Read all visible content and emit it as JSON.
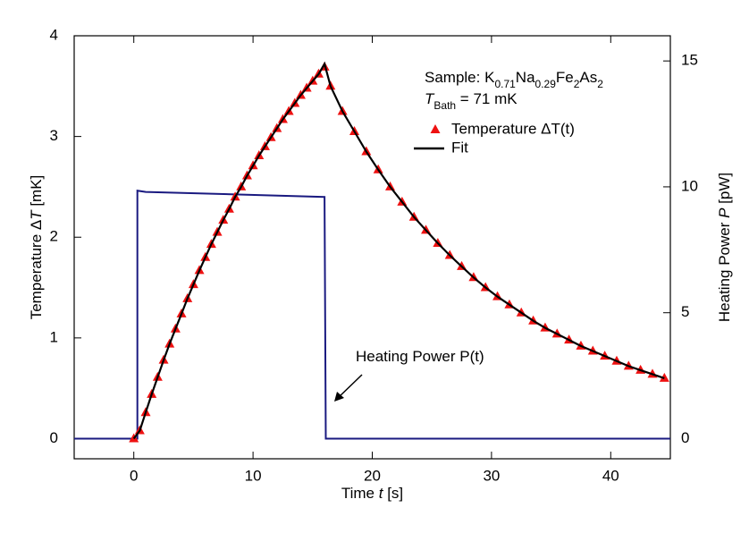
{
  "chart_data": {
    "type": "scatter",
    "xlabel": [
      {
        "text": "Time "
      },
      {
        "text": "t",
        "italic": true
      },
      {
        "text": " [s]"
      }
    ],
    "ylabel": [
      {
        "text": "Temperature Δ"
      },
      {
        "text": "T",
        "italic": true
      },
      {
        "text": " [mK]"
      }
    ],
    "y2label": [
      {
        "text": "Heating Power "
      },
      {
        "text": "P",
        "italic": true
      },
      {
        "text": " [pW]"
      }
    ],
    "xlim": [
      -5,
      45
    ],
    "xticks": [
      0,
      10,
      20,
      30,
      40
    ],
    "ylim": [
      -0.2,
      4
    ],
    "yticks": [
      0,
      1,
      2,
      3,
      4
    ],
    "y2lim": [
      -0.8,
      16
    ],
    "y2ticks": [
      0,
      5,
      10,
      15
    ],
    "annotations": [
      {
        "segments": [
          {
            "text": "Sample: K"
          },
          {
            "text": "0.71",
            "sub": true
          },
          {
            "text": "Na"
          },
          {
            "text": "0.29",
            "sub": true
          },
          {
            "text": "Fe"
          },
          {
            "text": "2",
            "sub": true
          },
          {
            "text": "As"
          },
          {
            "text": "2",
            "sub": true
          }
        ]
      },
      {
        "segments": [
          {
            "text": "T",
            "italic": true
          },
          {
            "text": "Bath",
            "sub": true
          },
          {
            "text": " = 71 mK"
          }
        ]
      },
      {
        "segments": [
          {
            "text": "Heating Power P(t)"
          }
        ]
      }
    ],
    "series": [
      {
        "name": "Temperature ΔT(t)",
        "type": "scatter",
        "color": "#ee1111",
        "x": [
          0,
          0.5,
          1,
          1.5,
          2,
          2.5,
          3,
          3.5,
          4,
          4.5,
          5,
          5.5,
          6,
          6.5,
          7,
          7.5,
          8,
          8.5,
          9,
          9.5,
          10,
          10.5,
          11,
          11.5,
          12,
          12.5,
          13,
          13.5,
          14,
          14.5,
          15,
          15.5,
          16,
          16.5,
          17.5,
          18.5,
          19.5,
          20.5,
          21.5,
          22.5,
          23.5,
          24.5,
          25.5,
          26.5,
          27.5,
          28.5,
          29.5,
          30.5,
          31.5,
          32.5,
          33.5,
          34.5,
          35.5,
          36.5,
          37.5,
          38.5,
          39.5,
          40.5,
          41.5,
          42.5,
          43.5,
          44.5
        ],
        "values": [
          0,
          0.08,
          0.26,
          0.44,
          0.61,
          0.78,
          0.94,
          1.09,
          1.24,
          1.39,
          1.53,
          1.67,
          1.8,
          1.93,
          2.05,
          2.17,
          2.28,
          2.4,
          2.5,
          2.61,
          2.71,
          2.81,
          2.9,
          2.99,
          3.08,
          3.17,
          3.25,
          3.33,
          3.41,
          3.48,
          3.55,
          3.62,
          3.69,
          3.5,
          3.25,
          3.05,
          2.85,
          2.67,
          2.5,
          2.35,
          2.2,
          2.07,
          1.94,
          1.82,
          1.71,
          1.6,
          1.5,
          1.41,
          1.33,
          1.25,
          1.17,
          1.1,
          1.04,
          0.98,
          0.92,
          0.87,
          0.82,
          0.77,
          0.72,
          0.68,
          0.64,
          0.6
        ]
      },
      {
        "name": "Fit",
        "type": "line",
        "color": "#000000",
        "x": [
          0,
          0.5,
          1,
          1.5,
          2,
          2.5,
          3,
          3.5,
          4,
          4.5,
          5,
          5.5,
          6,
          6.5,
          7,
          7.5,
          8,
          8.5,
          9,
          9.5,
          10,
          10.5,
          11,
          11.5,
          12,
          12.5,
          13,
          13.5,
          14,
          14.5,
          15,
          15.5,
          16,
          16.5,
          17.5,
          18.5,
          19.5,
          20.5,
          21.5,
          22.5,
          23.5,
          24.5,
          25.5,
          26.5,
          27.5,
          28.5,
          29.5,
          30.5,
          31.5,
          32.5,
          33.5,
          34.5,
          35.5,
          36.5,
          37.5,
          38.5,
          39.5,
          40.5,
          41.5,
          42.5,
          43.5,
          44.5
        ],
        "values": [
          0,
          0.08,
          0.26,
          0.44,
          0.61,
          0.78,
          0.94,
          1.09,
          1.24,
          1.39,
          1.53,
          1.67,
          1.8,
          1.93,
          2.05,
          2.17,
          2.28,
          2.4,
          2.5,
          2.61,
          2.71,
          2.81,
          2.9,
          2.99,
          3.08,
          3.17,
          3.25,
          3.33,
          3.41,
          3.48,
          3.55,
          3.62,
          3.72,
          3.5,
          3.25,
          3.05,
          2.85,
          2.67,
          2.5,
          2.35,
          2.2,
          2.07,
          1.94,
          1.82,
          1.71,
          1.6,
          1.5,
          1.41,
          1.33,
          1.25,
          1.17,
          1.1,
          1.04,
          0.98,
          0.92,
          0.87,
          0.82,
          0.77,
          0.72,
          0.68,
          0.64,
          0.6
        ]
      },
      {
        "type": "power",
        "axis": "y2",
        "color": "#1a1a80",
        "x": [
          -5,
          0.3,
          0.3,
          1,
          16,
          16.1,
          45
        ],
        "values": [
          0,
          0,
          9.85,
          9.8,
          9.6,
          0,
          0
        ]
      }
    ]
  }
}
